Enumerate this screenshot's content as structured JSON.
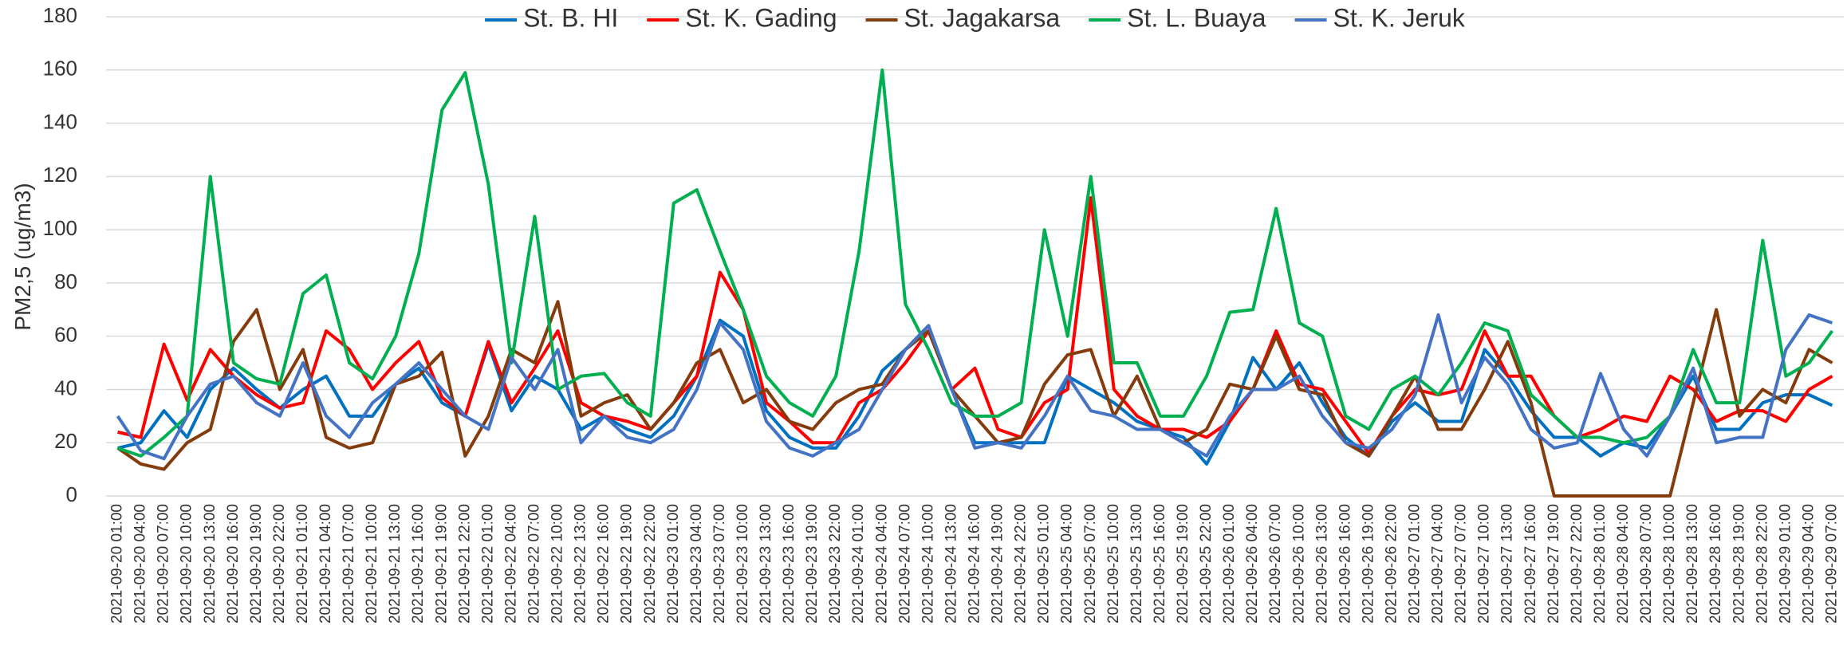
{
  "chart_data": {
    "type": "line",
    "y_label": "PM2,5 (ug/m3)",
    "ylim": [
      0,
      180
    ],
    "yticks": [
      0,
      20,
      40,
      60,
      80,
      100,
      120,
      140,
      160,
      180
    ],
    "grid": true,
    "legend": "top",
    "categories": [
      "2021-09-20 01:00",
      "2021-09-20 04:00",
      "2021-09-20 07:00",
      "2021-09-20 10:00",
      "2021-09-20 13:00",
      "2021-09-20 16:00",
      "2021-09-20 19:00",
      "2021-09-20 22:00",
      "2021-09-21 01:00",
      "2021-09-21 04:00",
      "2021-09-21 07:00",
      "2021-09-21 10:00",
      "2021-09-21 13:00",
      "2021-09-21 16:00",
      "2021-09-21 19:00",
      "2021-09-21 22:00",
      "2021-09-22 01:00",
      "2021-09-22 04:00",
      "2021-09-22 07:00",
      "2021-09-22 10:00",
      "2021-09-22 13:00",
      "2021-09-22 16:00",
      "2021-09-22 19:00",
      "2021-09-22 22:00",
      "2021-09-23 01:00",
      "2021-09-23 04:00",
      "2021-09-23 07:00",
      "2021-09-23 10:00",
      "2021-09-23 13:00",
      "2021-09-23 16:00",
      "2021-09-23 19:00",
      "2021-09-23 22:00",
      "2021-09-24 01:00",
      "2021-09-24 04:00",
      "2021-09-24 07:00",
      "2021-09-24 10:00",
      "2021-09-24 13:00",
      "2021-09-24 16:00",
      "2021-09-24 19:00",
      "2021-09-24 22:00",
      "2021-09-25 01:00",
      "2021-09-25 04:00",
      "2021-09-25 07:00",
      "2021-09-25 10:00",
      "2021-09-25 13:00",
      "2021-09-25 16:00",
      "2021-09-25 19:00",
      "2021-09-25 22:00",
      "2021-09-26 01:00",
      "2021-09-26 04:00",
      "2021-09-26 07:00",
      "2021-09-26 10:00",
      "2021-09-26 13:00",
      "2021-09-26 16:00",
      "2021-09-26 19:00",
      "2021-09-26 22:00",
      "2021-09-27 01:00",
      "2021-09-27 04:00",
      "2021-09-27 07:00",
      "2021-09-27 10:00",
      "2021-09-27 13:00",
      "2021-09-27 16:00",
      "2021-09-27 19:00",
      "2021-09-27 22:00",
      "2021-09-28 01:00",
      "2021-09-28 04:00",
      "2021-09-28 07:00",
      "2021-09-28 10:00",
      "2021-09-28 13:00",
      "2021-09-28 16:00",
      "2021-09-28 19:00",
      "2021-09-28 22:00",
      "2021-09-29 01:00",
      "2021-09-29 04:00",
      "2021-09-29 07:00"
    ],
    "series": [
      {
        "name": "St. B. HI",
        "color": "#0070c0",
        "values": [
          18,
          20,
          32,
          22,
          40,
          48,
          40,
          33,
          40,
          45,
          30,
          30,
          42,
          48,
          35,
          30,
          57,
          32,
          45,
          40,
          25,
          30,
          25,
          22,
          30,
          45,
          66,
          60,
          32,
          22,
          18,
          18,
          30,
          47,
          55,
          62,
          40,
          20,
          20,
          20,
          20,
          45,
          40,
          35,
          28,
          25,
          22,
          12,
          28,
          52,
          40,
          50,
          35,
          22,
          15,
          28,
          35,
          28,
          28,
          55,
          45,
          32,
          22,
          22,
          15,
          20,
          18,
          30,
          45,
          25,
          25,
          35,
          38,
          38,
          34
        ]
      },
      {
        "name": "St. K. Gading",
        "color": "#ff0000",
        "values": [
          24,
          22,
          57,
          36,
          55,
          45,
          38,
          33,
          35,
          62,
          55,
          40,
          50,
          58,
          37,
          30,
          58,
          35,
          48,
          62,
          35,
          30,
          28,
          25,
          35,
          45,
          84,
          70,
          35,
          28,
          20,
          20,
          35,
          40,
          50,
          62,
          40,
          48,
          25,
          22,
          35,
          40,
          112,
          40,
          30,
          25,
          25,
          22,
          28,
          40,
          62,
          42,
          40,
          28,
          16,
          30,
          40,
          38,
          40,
          62,
          45,
          45,
          30,
          22,
          25,
          30,
          28,
          45,
          40,
          28,
          32,
          32,
          28,
          40,
          45
        ]
      },
      {
        "name": "St. Jagakarsa",
        "color": "#843c0c",
        "values": [
          18,
          12,
          10,
          20,
          25,
          58,
          70,
          40,
          55,
          22,
          18,
          20,
          42,
          45,
          54,
          15,
          30,
          55,
          50,
          73,
          30,
          35,
          38,
          25,
          35,
          50,
          55,
          35,
          40,
          28,
          25,
          35,
          40,
          42,
          55,
          62,
          40,
          30,
          20,
          22,
          42,
          53,
          55,
          30,
          45,
          25,
          20,
          25,
          42,
          40,
          60,
          40,
          38,
          20,
          15,
          30,
          45,
          25,
          25,
          40,
          58,
          35,
          0,
          0,
          0,
          0,
          0,
          0,
          35,
          70,
          30,
          40,
          35,
          55,
          50
        ]
      },
      {
        "name": "St. L. Buaya",
        "color": "#00b050",
        "values": [
          18,
          15,
          22,
          30,
          120,
          50,
          44,
          42,
          76,
          83,
          50,
          44,
          60,
          91,
          145,
          159,
          117,
          50,
          105,
          40,
          45,
          46,
          35,
          30,
          110,
          115,
          92,
          70,
          45,
          35,
          30,
          45,
          92,
          160,
          72,
          55,
          35,
          30,
          30,
          35,
          100,
          60,
          120,
          50,
          50,
          30,
          30,
          45,
          69,
          70,
          108,
          65,
          60,
          30,
          25,
          40,
          45,
          38,
          50,
          65,
          62,
          38,
          30,
          22,
          22,
          20,
          22,
          30,
          55,
          35,
          35,
          96,
          45,
          50,
          62
        ]
      },
      {
        "name": "St. K. Jeruk",
        "color": "#4472c4",
        "values": [
          30,
          17,
          14,
          30,
          42,
          45,
          35,
          30,
          50,
          30,
          22,
          35,
          42,
          50,
          40,
          30,
          25,
          52,
          40,
          55,
          20,
          30,
          22,
          20,
          25,
          40,
          65,
          55,
          28,
          18,
          15,
          20,
          25,
          40,
          55,
          64,
          40,
          18,
          20,
          18,
          30,
          45,
          32,
          30,
          25,
          25,
          20,
          15,
          30,
          40,
          40,
          45,
          30,
          20,
          18,
          25,
          38,
          68,
          35,
          52,
          42,
          25,
          18,
          20,
          46,
          25,
          15,
          30,
          48,
          20,
          22,
          22,
          55,
          68,
          65
        ]
      }
    ]
  }
}
